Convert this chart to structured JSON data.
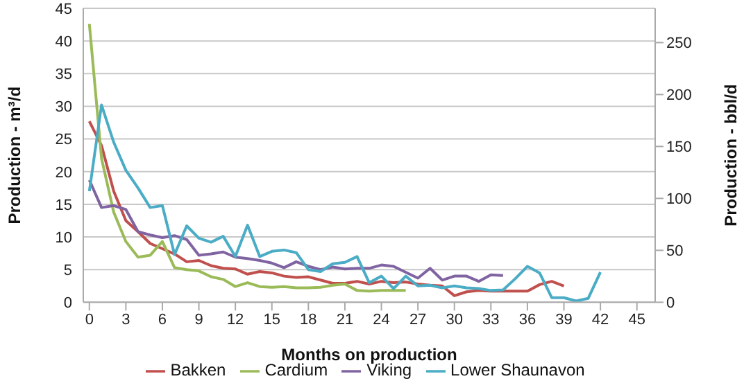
{
  "chart_data": {
    "type": "line",
    "xlabel": "Months on production",
    "ylabel": "Production - m³/d",
    "y2label": "Production - bbl/d",
    "xlim": [
      -0.5,
      46.5
    ],
    "xticks": [
      0,
      3,
      6,
      9,
      12,
      15,
      18,
      21,
      24,
      27,
      30,
      33,
      36,
      39,
      42,
      45
    ],
    "ylim": [
      0,
      45
    ],
    "yticks": [
      0,
      5,
      10,
      15,
      20,
      25,
      30,
      35,
      40,
      45
    ],
    "y2lim": [
      0,
      283
    ],
    "y2ticks": [
      0,
      50,
      100,
      150,
      200,
      250
    ],
    "grid": "y",
    "legend": "bottom",
    "x": [
      0,
      1,
      2,
      3,
      4,
      5,
      6,
      7,
      8,
      9,
      10,
      11,
      12,
      13,
      14,
      15,
      16,
      17,
      18,
      19,
      20,
      21,
      22,
      23,
      24,
      25,
      26,
      27,
      28,
      29,
      30,
      31,
      32,
      33,
      34,
      35,
      36,
      37,
      38,
      39,
      40,
      41,
      42
    ],
    "series": [
      {
        "name": "Bakken",
        "color": "#c0504d",
        "values": [
          27.7,
          24,
          17,
          12.5,
          10.8,
          9,
          8.2,
          7.4,
          6.2,
          6.4,
          5.6,
          5.2,
          5.1,
          4.3,
          4.7,
          4.5,
          4,
          3.8,
          3.9,
          3.4,
          2.9,
          2.9,
          3.2,
          2.8,
          3.2,
          3.0,
          3.1,
          2.8,
          2.6,
          2.5,
          1.0,
          1.6,
          1.8,
          1.7,
          1.7,
          1.7,
          1.7,
          2.7,
          3.2,
          2.5,
          null,
          null,
          null
        ]
      },
      {
        "name": "Cardium",
        "color": "#9bbb59",
        "values": [
          42.6,
          22,
          13.8,
          9.3,
          6.9,
          7.2,
          9.3,
          5.3,
          5.0,
          4.8,
          3.9,
          3.5,
          2.4,
          3.0,
          2.4,
          2.3,
          2.4,
          2.2,
          2.2,
          2.3,
          2.6,
          2.8,
          1.8,
          1.7,
          1.8,
          1.8,
          1.8,
          null,
          null,
          null,
          null,
          null,
          null,
          null,
          null,
          null,
          null,
          null,
          null,
          null,
          null,
          null,
          null
        ]
      },
      {
        "name": "Viking",
        "color": "#8064a2",
        "values": [
          18.7,
          14.5,
          14.8,
          14.2,
          10.8,
          10.3,
          9.9,
          10.2,
          9.6,
          7.2,
          7.4,
          7.7,
          6.9,
          6.7,
          6.4,
          6.0,
          5.3,
          6.2,
          5.5,
          5.0,
          5.4,
          5.1,
          5.2,
          5.2,
          5.7,
          5.5,
          4.6,
          3.7,
          5.2,
          3.4,
          4.0,
          4.0,
          3.2,
          4.2,
          4.1,
          null,
          null,
          null,
          null,
          null,
          null,
          null,
          null
        ]
      },
      {
        "name": "Lower Shaunavon",
        "color": "#4bacc6",
        "values": [
          17,
          30.2,
          24.5,
          20.2,
          17.5,
          14.5,
          14.8,
          7.3,
          11.7,
          9.8,
          9.2,
          10.1,
          7,
          11.8,
          7,
          7.8,
          8,
          7.6,
          5,
          4.7,
          5.9,
          6.1,
          7,
          3.0,
          4.0,
          2.1,
          4.0,
          2.5,
          2.6,
          2.2,
          2.5,
          2.2,
          2.1,
          1.8,
          1.9,
          3.6,
          5.5,
          4.5,
          0.7,
          0.7,
          0.2,
          0.6,
          4.6
        ]
      }
    ]
  }
}
